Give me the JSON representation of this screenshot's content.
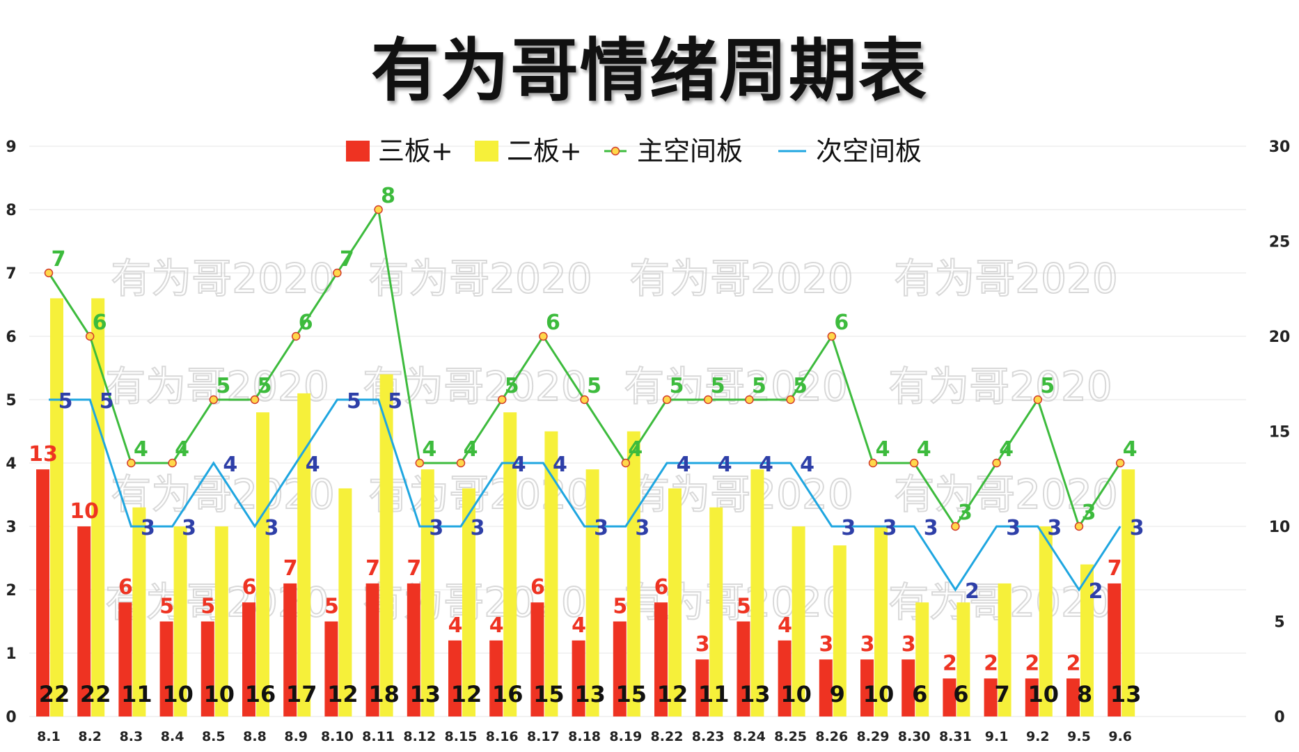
{
  "title": "有为哥情绪周期表",
  "watermark": "有为哥2020",
  "chart_data": {
    "type": "bar",
    "title": "有为哥情绪周期表",
    "categories": [
      "8.1",
      "8.2",
      "8.3",
      "8.4",
      "8.5",
      "8.8",
      "8.9",
      "8.10",
      "8.11",
      "8.12",
      "8.15",
      "8.16",
      "8.17",
      "8.18",
      "8.19",
      "8.22",
      "8.23",
      "8.24",
      "8.25",
      "8.26",
      "8.29",
      "8.30",
      "8.31",
      "9.1",
      "9.2",
      "9.5",
      "9.6"
    ],
    "left_axis": {
      "min": 0,
      "max": 9,
      "ticks": [
        "0",
        "1",
        "2",
        "3",
        "4",
        "5",
        "6",
        "7",
        "8",
        "9"
      ]
    },
    "right_axis": {
      "min": 0,
      "max": 30,
      "ticks": [
        "0",
        "5",
        "10",
        "15",
        "20",
        "25",
        "30"
      ]
    },
    "series": [
      {
        "name": "三板+",
        "kind": "bar",
        "axis": "right",
        "color": "#ee3322",
        "values": [
          13,
          10,
          6,
          5,
          5,
          6,
          7,
          5,
          7,
          7,
          4,
          4,
          6,
          4,
          5,
          6,
          3,
          5,
          4,
          3,
          3,
          3,
          2,
          2,
          2,
          2,
          7
        ]
      },
      {
        "name": "二板+",
        "kind": "bar",
        "axis": "right",
        "color": "#f6f03a",
        "values": [
          22,
          22,
          11,
          10,
          10,
          16,
          17,
          12,
          18,
          13,
          12,
          16,
          15,
          13,
          15,
          12,
          11,
          13,
          10,
          9,
          10,
          6,
          6,
          7,
          10,
          8,
          13
        ]
      },
      {
        "name": "主空间板",
        "kind": "line",
        "axis": "left",
        "color": "#3dbb3d",
        "values": [
          7,
          6,
          4,
          4,
          5,
          5,
          6,
          7,
          8,
          4,
          4,
          5,
          6,
          5,
          4,
          5,
          5,
          5,
          5,
          6,
          4,
          4,
          3,
          4,
          5,
          3,
          4
        ]
      },
      {
        "name": "次空间板",
        "kind": "line",
        "axis": "left",
        "color": "#1fa6e0",
        "values": [
          5,
          5,
          3,
          3,
          4,
          3,
          4,
          5,
          5,
          3,
          3,
          4,
          4,
          3,
          3,
          4,
          4,
          4,
          4,
          3,
          3,
          3,
          2,
          3,
          3,
          2,
          3
        ]
      }
    ],
    "grid": true,
    "legend_position": "top"
  }
}
